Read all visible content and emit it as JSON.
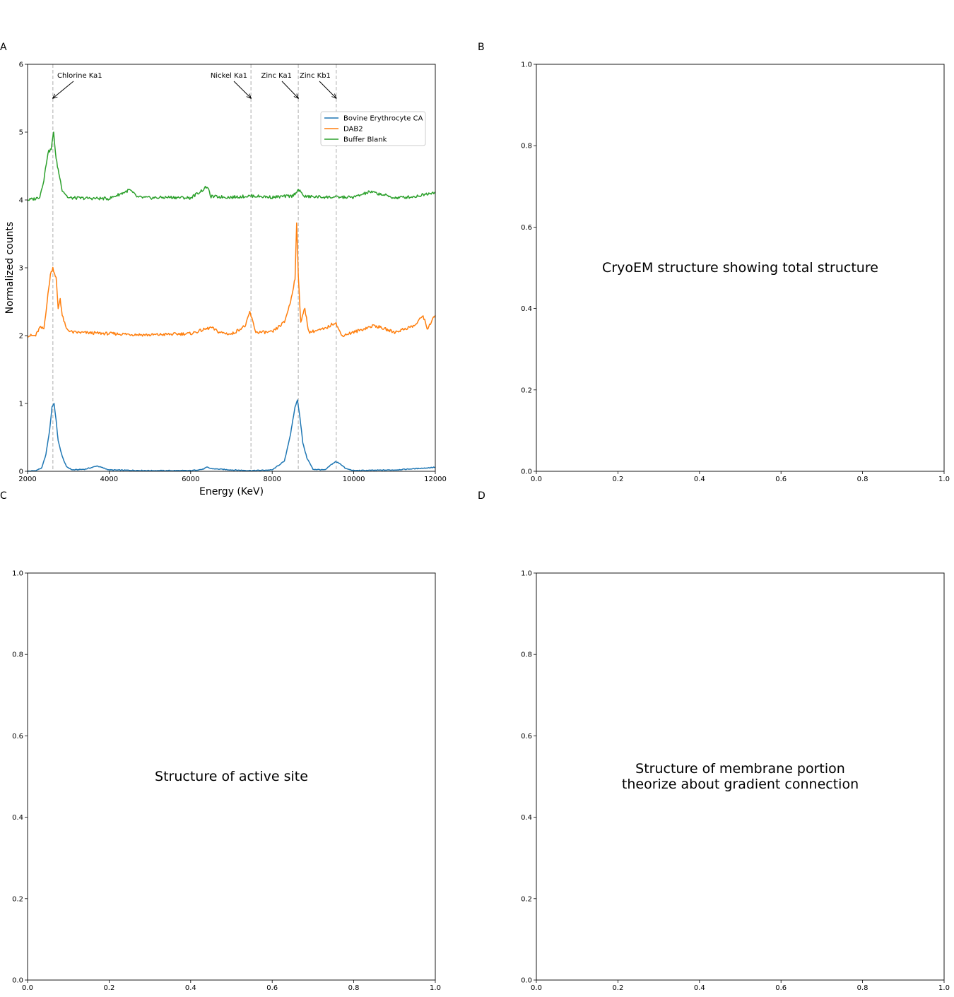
{
  "panels": {
    "A": {
      "letter": "A"
    },
    "B": {
      "letter": "B",
      "caption": [
        "CryoEM structure showing total structure"
      ]
    },
    "C": {
      "letter": "C",
      "caption": [
        "Structure of active site"
      ]
    },
    "D": {
      "letter": "D",
      "caption": [
        "Structure of membrane portion",
        "theorize about gradient connection"
      ]
    }
  },
  "chart_data": [
    {
      "panel": "A",
      "type": "line",
      "xlabel": "Energy (KeV)",
      "ylabel": "Normalized counts",
      "xlim": [
        2000,
        12000
      ],
      "ylim": [
        0,
        6
      ],
      "xticks": [
        2000,
        4000,
        6000,
        8000,
        10000,
        12000
      ],
      "yticks": [
        0,
        1,
        2,
        3,
        4,
        5,
        6
      ],
      "grid": false,
      "legend_position": "upper-right",
      "reference_lines": [
        {
          "x": 2620,
          "style": "dashed",
          "color": "#c8c8c8"
        },
        {
          "x": 7480,
          "style": "dashed",
          "color": "#c8c8c8"
        },
        {
          "x": 8640,
          "style": "dashed",
          "color": "#c8c8c8"
        },
        {
          "x": 9570,
          "style": "dashed",
          "color": "#c8c8c8"
        }
      ],
      "annotations": [
        {
          "text": "Chlorine Ka1",
          "x": 2620,
          "y": 5.5
        },
        {
          "text": "Nickel Ka1",
          "x": 7480,
          "y": 5.5
        },
        {
          "text": "Zinc Ka1",
          "x": 8640,
          "y": 5.5
        },
        {
          "text": "Zinc Kb1",
          "x": 9570,
          "y": 5.5
        }
      ],
      "series": [
        {
          "name": "Bovine Erythrocyte CA",
          "color": "#1f77b4",
          "points": [
            [
              2000,
              0.0
            ],
            [
              2200,
              0.01
            ],
            [
              2350,
              0.05
            ],
            [
              2450,
              0.25
            ],
            [
              2540,
              0.6
            ],
            [
              2600,
              0.95
            ],
            [
              2650,
              1.0
            ],
            [
              2700,
              0.75
            ],
            [
              2750,
              0.45
            ],
            [
              2850,
              0.22
            ],
            [
              2950,
              0.07
            ],
            [
              3100,
              0.02
            ],
            [
              3400,
              0.03
            ],
            [
              3600,
              0.06
            ],
            [
              3700,
              0.08
            ],
            [
              3800,
              0.06
            ],
            [
              4000,
              0.02
            ],
            [
              5000,
              0.01
            ],
            [
              6000,
              0.01
            ],
            [
              6300,
              0.03
            ],
            [
              6400,
              0.06
            ],
            [
              6500,
              0.04
            ],
            [
              7000,
              0.02
            ],
            [
              7500,
              0.01
            ],
            [
              8000,
              0.02
            ],
            [
              8300,
              0.15
            ],
            [
              8450,
              0.55
            ],
            [
              8560,
              0.95
            ],
            [
              8620,
              1.05
            ],
            [
              8680,
              0.8
            ],
            [
              8750,
              0.42
            ],
            [
              8850,
              0.2
            ],
            [
              9000,
              0.03
            ],
            [
              9300,
              0.02
            ],
            [
              9450,
              0.1
            ],
            [
              9550,
              0.14
            ],
            [
              9650,
              0.12
            ],
            [
              9800,
              0.04
            ],
            [
              10000,
              0.01
            ],
            [
              11000,
              0.02
            ],
            [
              11800,
              0.05
            ],
            [
              12000,
              0.06
            ]
          ]
        },
        {
          "name": "DAB2",
          "color": "#ff7f0e",
          "points": [
            [
              2000,
              2.0
            ],
            [
              2200,
              2.0
            ],
            [
              2300,
              2.12
            ],
            [
              2400,
              2.1
            ],
            [
              2480,
              2.5
            ],
            [
              2560,
              2.9
            ],
            [
              2620,
              3.0
            ],
            [
              2700,
              2.85
            ],
            [
              2750,
              2.4
            ],
            [
              2800,
              2.55
            ],
            [
              2850,
              2.3
            ],
            [
              2950,
              2.1
            ],
            [
              3100,
              2.05
            ],
            [
              4000,
              2.03
            ],
            [
              5000,
              2.01
            ],
            [
              6000,
              2.03
            ],
            [
              6500,
              2.12
            ],
            [
              6700,
              2.05
            ],
            [
              7000,
              2.02
            ],
            [
              7350,
              2.15
            ],
            [
              7450,
              2.35
            ],
            [
              7500,
              2.25
            ],
            [
              7600,
              2.05
            ],
            [
              8000,
              2.05
            ],
            [
              8300,
              2.2
            ],
            [
              8450,
              2.5
            ],
            [
              8560,
              2.85
            ],
            [
              8600,
              3.65
            ],
            [
              8640,
              2.9
            ],
            [
              8700,
              2.2
            ],
            [
              8800,
              2.4
            ],
            [
              8900,
              2.05
            ],
            [
              9300,
              2.1
            ],
            [
              9550,
              2.2
            ],
            [
              9700,
              2.0
            ],
            [
              10000,
              2.05
            ],
            [
              10500,
              2.15
            ],
            [
              11000,
              2.05
            ],
            [
              11500,
              2.15
            ],
            [
              11700,
              2.3
            ],
            [
              11800,
              2.1
            ],
            [
              12000,
              2.3
            ]
          ]
        },
        {
          "name": "Buffer Blank",
          "color": "#2ca02c",
          "points": [
            [
              2000,
              4.0
            ],
            [
              2200,
              4.02
            ],
            [
              2300,
              4.05
            ],
            [
              2400,
              4.3
            ],
            [
              2500,
              4.7
            ],
            [
              2580,
              4.75
            ],
            [
              2640,
              5.0
            ],
            [
              2700,
              4.6
            ],
            [
              2750,
              4.45
            ],
            [
              2850,
              4.15
            ],
            [
              3000,
              4.03
            ],
            [
              4000,
              4.02
            ],
            [
              4400,
              4.12
            ],
            [
              4500,
              4.15
            ],
            [
              4700,
              4.04
            ],
            [
              5000,
              4.03
            ],
            [
              5500,
              4.04
            ],
            [
              6000,
              4.03
            ],
            [
              6300,
              4.15
            ],
            [
              6400,
              4.2
            ],
            [
              6500,
              4.05
            ],
            [
              7000,
              4.04
            ],
            [
              7500,
              4.06
            ],
            [
              8000,
              4.04
            ],
            [
              8500,
              4.06
            ],
            [
              8640,
              4.15
            ],
            [
              8800,
              4.05
            ],
            [
              9500,
              4.04
            ],
            [
              10000,
              4.04
            ],
            [
              10400,
              4.12
            ],
            [
              10700,
              4.08
            ],
            [
              11000,
              4.03
            ],
            [
              11500,
              4.05
            ],
            [
              12000,
              4.12
            ]
          ]
        }
      ]
    },
    {
      "panel": "B",
      "type": "line",
      "series": [],
      "xlim": [
        0,
        1
      ],
      "ylim": [
        0,
        1
      ],
      "xticks": [
        0.0,
        0.2,
        0.4,
        0.6,
        0.8,
        1.0
      ],
      "yticks": [
        0.0,
        0.2,
        0.4,
        0.6,
        0.8,
        1.0
      ],
      "xlabel": "",
      "ylabel": ""
    },
    {
      "panel": "C",
      "type": "line",
      "series": [],
      "xlim": [
        0,
        1
      ],
      "ylim": [
        0,
        1
      ],
      "xticks": [
        0.0,
        0.2,
        0.4,
        0.6,
        0.8,
        1.0
      ],
      "yticks": [
        0.0,
        0.2,
        0.4,
        0.6,
        0.8,
        1.0
      ],
      "xlabel": "",
      "ylabel": ""
    },
    {
      "panel": "D",
      "type": "line",
      "series": [],
      "xlim": [
        0,
        1
      ],
      "ylim": [
        0,
        1
      ],
      "xticks": [
        0.0,
        0.2,
        0.4,
        0.6,
        0.8,
        1.0
      ],
      "yticks": [
        0.0,
        0.2,
        0.4,
        0.6,
        0.8,
        1.0
      ],
      "xlabel": "",
      "ylabel": ""
    }
  ]
}
